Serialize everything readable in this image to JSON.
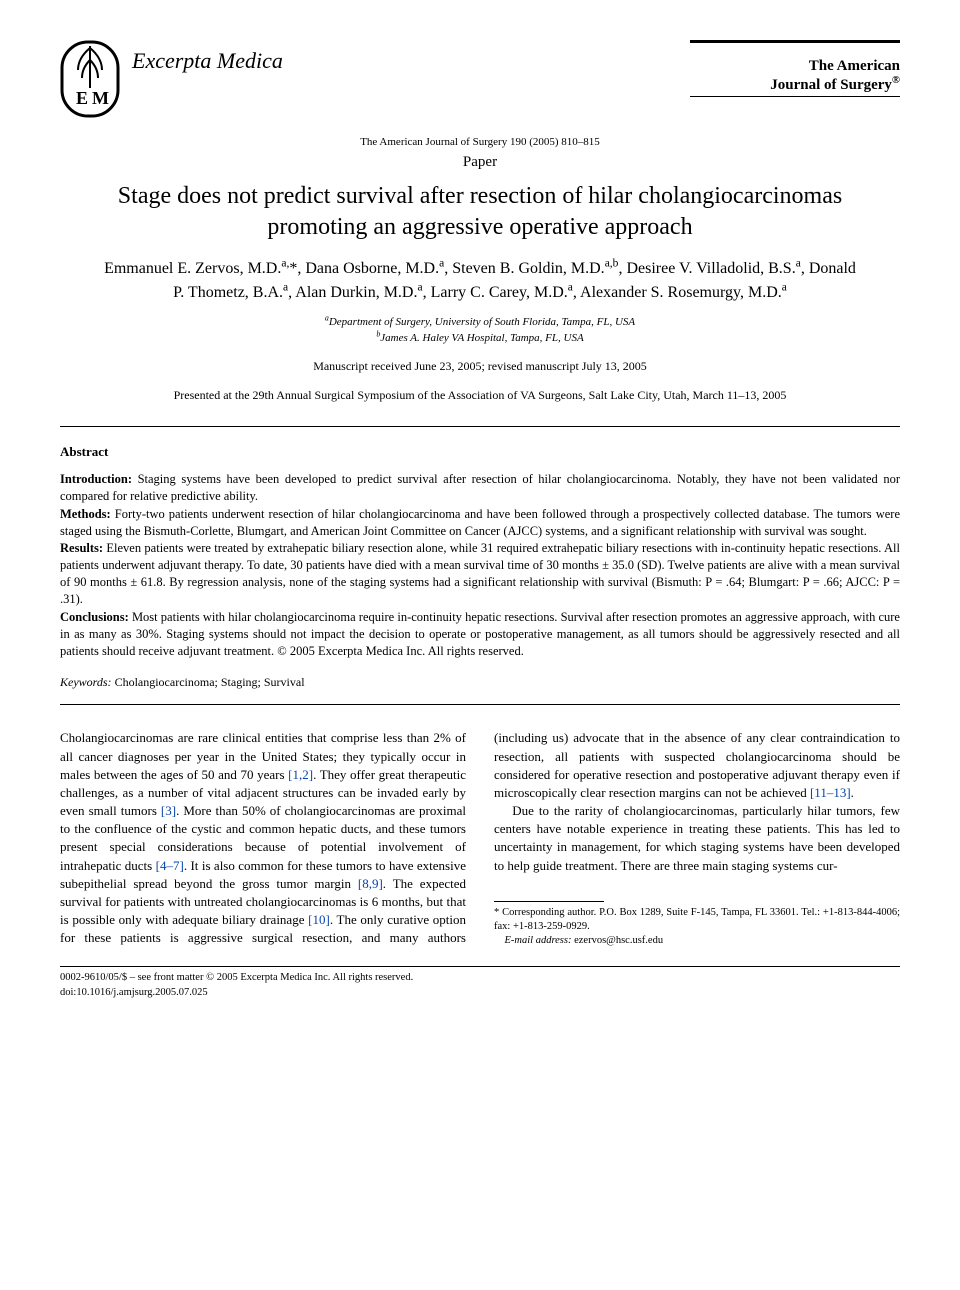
{
  "publisher": {
    "name": "Excerpta Medica",
    "logo_initials": "E M",
    "logo_stroke": "#000000",
    "logo_fill": "#ffffff"
  },
  "journal": {
    "name_line1": "The American",
    "name_line2": "Journal of Surgery",
    "registered_mark": "®"
  },
  "citation": "The American Journal of Surgery 190 (2005) 810–815",
  "section_label": "Paper",
  "title": "Stage does not predict survival after resection of hilar cholangiocarcinomas promoting an aggressive operative approach",
  "authors_html": "Emmanuel E. Zervos, M.D.<sup>a,</sup>*, Dana Osborne, M.D.<sup>a</sup>, Steven B. Goldin, M.D.<sup>a,b</sup>, Desiree V. Villadolid, B.S.<sup>a</sup>, Donald P. Thometz, B.A.<sup>a</sup>, Alan Durkin, M.D.<sup>a</sup>, Larry C. Carey, M.D.<sup>a</sup>, Alexander S. Rosemurgy, M.D.<sup>a</sup>",
  "affiliations": {
    "a": "Department of Surgery, University of South Florida, Tampa, FL, USA",
    "b": "James A. Haley VA Hospital, Tampa, FL, USA"
  },
  "manuscript_dates": "Manuscript received June 23, 2005; revised manuscript July 13, 2005",
  "presented": "Presented at the 29th Annual Surgical Symposium of the Association of VA Surgeons, Salt Lake City, Utah, March 11–13, 2005",
  "abstract": {
    "heading": "Abstract",
    "sections": [
      {
        "label": "Introduction:",
        "text": "Staging systems have been developed to predict survival after resection of hilar cholangiocarcinoma. Notably, they have not been validated nor compared for relative predictive ability."
      },
      {
        "label": "Methods:",
        "text": "Forty-two patients underwent resection of hilar cholangiocarcinoma and have been followed through a prospectively collected database. The tumors were staged using the Bismuth-Corlette, Blumgart, and American Joint Committee on Cancer (AJCC) systems, and a significant relationship with survival was sought."
      },
      {
        "label": "Results:",
        "text": "Eleven patients were treated by extrahepatic biliary resection alone, while 31 required extrahepatic biliary resections with in-continuity hepatic resections. All patients underwent adjuvant therapy. To date, 30 patients have died with a mean survival time of 30 months ± 35.0 (SD). Twelve patients are alive with a mean survival of 90 months ± 61.8. By regression analysis, none of the staging systems had a significant relationship with survival (Bismuth: P = .64; Blumgart: P = .66; AJCC: P = .31)."
      },
      {
        "label": "Conclusions:",
        "text": "Most patients with hilar cholangiocarcinoma require in-continuity hepatic resections. Survival after resection promotes an aggressive approach, with cure in as many as 30%. Staging systems should not impact the decision to operate or postoperative management, as all tumors should be aggressively resected and all patients should receive adjuvant treatment. © 2005 Excerpta Medica Inc. All rights reserved."
      }
    ]
  },
  "keywords": {
    "label": "Keywords:",
    "text": "Cholangiocarcinoma; Staging; Survival"
  },
  "body": {
    "para1_pre": "Cholangiocarcinomas are rare clinical entities that comprise less than 2% of all cancer diagnoses per year in the United States; they typically occur in males between the ages of 50 and 70 years ",
    "ref12": "[1,2]",
    "para1_mid1": ". They offer great therapeutic challenges, as a number of vital adjacent structures can be invaded early by even small tumors ",
    "ref3": "[3]",
    "para1_mid2": ". More than 50% of cholangiocarcinomas are proximal to the confluence of the cystic and common hepatic ducts, and these tumors present special considerations because of potential involvement of intrahepatic ducts ",
    "ref47": "[4–7]",
    "para1_mid3": ". It is also common for these tumors to have extensive subepithelial spread beyond the gross tumor margin ",
    "ref89": "[8,9]",
    "para1_mid4": ". The expected survival for patients with untreated cholangiocarcinomas is 6 months, but that is possible only with adequate biliary drainage ",
    "ref10": "[10]",
    "para1_mid5": ". The only curative option for these patients is aggressive surgical resection, and many authors (including us) advocate that in the absence of any clear contraindication to resection, all patients with suspected cholangiocarcinoma should be considered for operative resection and postoperative adjuvant therapy even if microscopically clear resection margins can not be achieved ",
    "ref1113": "[11–13]",
    "para1_end": ".",
    "para2": "Due to the rarity of cholangiocarcinomas, particularly hilar tumors, few centers have notable experience in treating these patients. This has led to uncertainty in management, for which staging systems have been developed to help guide treatment. There are three main staging systems cur-"
  },
  "footnotes": {
    "corresponding": "* Corresponding author. P.O. Box 1289, Suite F-145, Tampa, FL 33601. Tel.: +1-813-844-4006; fax: +1-813-259-0929.",
    "email_label": "E-mail address:",
    "email": "ezervos@hsc.usf.edu"
  },
  "footer": {
    "line1": "0002-9610/05/$ – see front matter © 2005 Excerpta Medica Inc. All rights reserved.",
    "line2": "doi:10.1016/j.amjsurg.2005.07.025"
  },
  "colors": {
    "text": "#000000",
    "background": "#ffffff",
    "link": "#0645ad",
    "rule": "#000000"
  },
  "typography": {
    "body_family": "Georgia, 'Times New Roman', serif",
    "title_size_pt": 18,
    "authors_size_pt": 12,
    "abstract_size_pt": 9.5,
    "body_size_pt": 10,
    "footnote_size_pt": 8
  }
}
